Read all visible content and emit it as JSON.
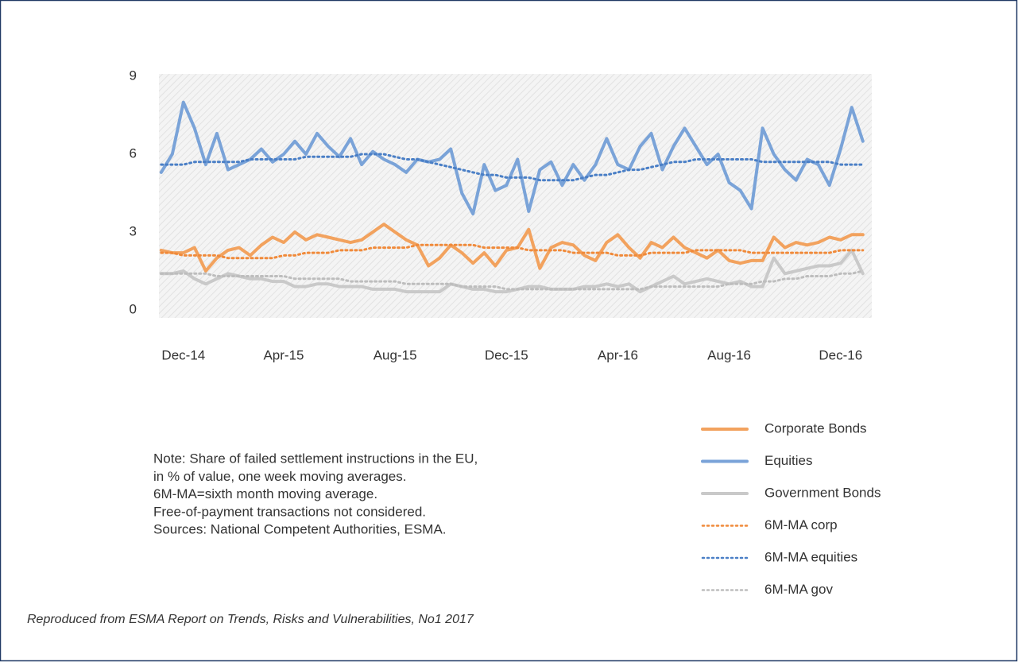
{
  "chart_data": {
    "type": "line",
    "categories": [
      null,
      null,
      "Dec-14",
      null,
      null,
      null,
      null,
      null,
      null,
      null,
      null,
      "Apr-15",
      null,
      null,
      null,
      null,
      null,
      null,
      null,
      null,
      null,
      "Aug-15",
      null,
      null,
      null,
      null,
      null,
      null,
      null,
      null,
      null,
      "Dec-15",
      null,
      null,
      null,
      null,
      null,
      null,
      null,
      null,
      null,
      "Apr-16",
      null,
      null,
      null,
      null,
      null,
      null,
      null,
      null,
      null,
      "Aug-16",
      null,
      null,
      null,
      null,
      null,
      null,
      null,
      null,
      null,
      "Dec-16",
      null,
      null
    ],
    "ylim": [
      0,
      9
    ],
    "yticks": [
      0,
      3,
      6,
      9
    ],
    "series": [
      {
        "name": "Corporate Bonds",
        "color": "#f2a25e",
        "style": "solid",
        "values": [
          2.3,
          2.2,
          2.2,
          2.4,
          1.5,
          2.0,
          2.3,
          2.4,
          2.1,
          2.5,
          2.8,
          2.6,
          3.0,
          2.7,
          2.9,
          2.8,
          2.7,
          2.6,
          2.7,
          3.0,
          3.3,
          3.0,
          2.7,
          2.5,
          1.7,
          2.0,
          2.5,
          2.2,
          1.8,
          2.2,
          1.7,
          2.3,
          2.4,
          3.1,
          1.6,
          2.4,
          2.6,
          2.5,
          2.1,
          1.9,
          2.6,
          2.9,
          2.4,
          2.0,
          2.6,
          2.4,
          2.8,
          2.4,
          2.2,
          2.0,
          2.3,
          1.9,
          1.8,
          1.9,
          1.9,
          2.8,
          2.4,
          2.6,
          2.5,
          2.6,
          2.8,
          2.7,
          2.9,
          2.9
        ]
      },
      {
        "name": "Equities",
        "color": "#7aa3d8",
        "style": "solid",
        "values": [
          5.3,
          6.0,
          8.0,
          7.0,
          5.6,
          6.8,
          5.4,
          5.6,
          5.8,
          6.2,
          5.7,
          6.0,
          6.5,
          6.0,
          6.8,
          6.3,
          5.9,
          6.6,
          5.6,
          6.1,
          5.8,
          5.6,
          5.3,
          5.8,
          5.7,
          5.8,
          6.2,
          4.5,
          3.7,
          5.6,
          4.6,
          4.8,
          5.8,
          3.8,
          5.4,
          5.7,
          4.8,
          5.6,
          5.0,
          5.6,
          6.6,
          5.6,
          5.4,
          6.3,
          6.8,
          5.4,
          6.3,
          7.0,
          6.3,
          5.6,
          6.0,
          4.9,
          4.6,
          3.9,
          7.0,
          6.0,
          5.4,
          5.0,
          5.8,
          5.6,
          4.8,
          6.2,
          7.8,
          6.5
        ]
      },
      {
        "name": "Government Bonds",
        "color": "#c9c9c9",
        "style": "solid",
        "values": [
          1.4,
          1.4,
          1.5,
          1.2,
          1.0,
          1.2,
          1.4,
          1.3,
          1.2,
          1.2,
          1.1,
          1.1,
          0.9,
          0.9,
          1.0,
          1.0,
          0.9,
          0.9,
          0.9,
          0.8,
          0.8,
          0.8,
          0.7,
          0.7,
          0.7,
          0.7,
          1.0,
          0.9,
          0.8,
          0.8,
          0.7,
          0.7,
          0.8,
          0.9,
          0.9,
          0.8,
          0.8,
          0.8,
          0.9,
          0.9,
          1.0,
          0.9,
          1.0,
          0.7,
          0.9,
          1.1,
          1.3,
          1.0,
          1.1,
          1.2,
          1.1,
          1.0,
          1.1,
          0.9,
          0.9,
          2.0,
          1.4,
          1.5,
          1.6,
          1.7,
          1.7,
          1.8,
          2.3,
          1.4
        ]
      },
      {
        "name": "6M-MA corp",
        "color": "#f08a3a",
        "style": "dotted",
        "values": [
          2.2,
          2.2,
          2.1,
          2.1,
          2.1,
          2.1,
          2.0,
          2.0,
          2.0,
          2.0,
          2.0,
          2.1,
          2.1,
          2.2,
          2.2,
          2.2,
          2.3,
          2.3,
          2.3,
          2.4,
          2.4,
          2.4,
          2.4,
          2.5,
          2.5,
          2.5,
          2.5,
          2.5,
          2.5,
          2.4,
          2.4,
          2.4,
          2.4,
          2.3,
          2.3,
          2.3,
          2.3,
          2.2,
          2.2,
          2.2,
          2.2,
          2.1,
          2.1,
          2.1,
          2.2,
          2.2,
          2.2,
          2.2,
          2.3,
          2.3,
          2.3,
          2.3,
          2.3,
          2.2,
          2.2,
          2.2,
          2.2,
          2.2,
          2.2,
          2.2,
          2.2,
          2.3,
          2.3,
          2.3
        ]
      },
      {
        "name": "6M-MA equities",
        "color": "#4a7fc6",
        "style": "dotted",
        "values": [
          5.6,
          5.6,
          5.6,
          5.7,
          5.7,
          5.7,
          5.7,
          5.7,
          5.8,
          5.8,
          5.8,
          5.8,
          5.8,
          5.9,
          5.9,
          5.9,
          5.9,
          5.9,
          6.0,
          6.0,
          6.0,
          5.9,
          5.8,
          5.8,
          5.7,
          5.6,
          5.5,
          5.4,
          5.3,
          5.2,
          5.2,
          5.1,
          5.1,
          5.1,
          5.0,
          5.0,
          5.0,
          5.0,
          5.1,
          5.2,
          5.2,
          5.3,
          5.4,
          5.4,
          5.5,
          5.6,
          5.7,
          5.7,
          5.8,
          5.8,
          5.8,
          5.8,
          5.8,
          5.8,
          5.7,
          5.7,
          5.7,
          5.7,
          5.7,
          5.7,
          5.7,
          5.6,
          5.6,
          5.6
        ]
      },
      {
        "name": "6M-MA gov",
        "color": "#bdbdbd",
        "style": "dotted",
        "values": [
          1.4,
          1.4,
          1.4,
          1.4,
          1.4,
          1.3,
          1.3,
          1.3,
          1.3,
          1.3,
          1.3,
          1.3,
          1.2,
          1.2,
          1.2,
          1.2,
          1.2,
          1.1,
          1.1,
          1.1,
          1.1,
          1.1,
          1.0,
          1.0,
          1.0,
          1.0,
          1.0,
          0.9,
          0.9,
          0.9,
          0.9,
          0.8,
          0.8,
          0.8,
          0.8,
          0.8,
          0.8,
          0.8,
          0.8,
          0.8,
          0.8,
          0.8,
          0.8,
          0.8,
          0.9,
          0.9,
          0.9,
          0.9,
          0.9,
          0.9,
          0.9,
          1.0,
          1.0,
          1.0,
          1.1,
          1.1,
          1.2,
          1.2,
          1.3,
          1.3,
          1.3,
          1.4,
          1.4,
          1.5
        ]
      }
    ],
    "notes": [
      "Note: Share of failed settlement instructions in the EU,",
      "in % of value, one week moving averages.",
      "6M-MA=sixth month moving average.",
      "Free-of-payment transactions not considered.",
      "Sources: National Competent Authorities, ESMA."
    ],
    "source": "Reproduced from ESMA Report on Trends, Risks and Vulnerabilities, No1 2017"
  }
}
